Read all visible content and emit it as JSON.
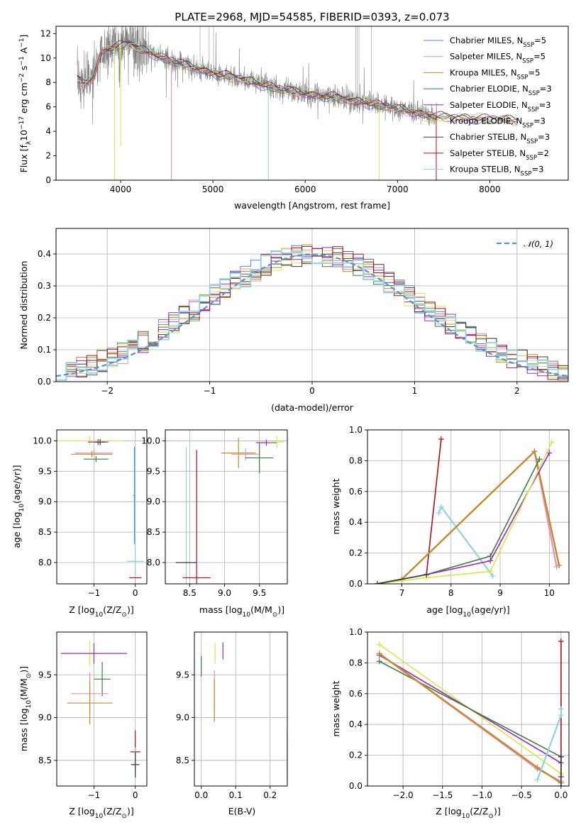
{
  "figure": {
    "title": "PLATE=2968, MJD=54585, FIBERID=0393, z=0.073"
  },
  "model_colors": {
    "Chabrier MILES": "#5b7fd6",
    "Salpeter MILES": "#e68fc2",
    "Kroupa MILES": "#c68a1e",
    "Chabrier ELODIE": "#3f7a3f",
    "Salpeter ELODIE": "#9a28b8",
    "Kroupa ELODIE": "#d4e84a",
    "Chabrier STELIB": "#3a3a3a",
    "Salpeter STELIB": "#a8101a",
    "Kroupa STELIB": "#8fd3d9",
    "data": "#808080",
    "normal": "#5a8fd6"
  },
  "chart_data": [
    {
      "id": "spectrum",
      "type": "line",
      "title": "PLATE=2968, MJD=54585, FIBERID=0393, z=0.073",
      "xlabel": "wavelength [Angstrom, rest frame]",
      "ylabel_parts": [
        "Flux [f",
        "λ",
        "10",
        "−17",
        " erg cm",
        "−2",
        " s",
        "−1",
        " A",
        "−1",
        "]"
      ],
      "xlim": [
        3300,
        8850
      ],
      "ylim": [
        0,
        12.6
      ],
      "xticks": [
        4000,
        5000,
        6000,
        7000,
        8000
      ],
      "yticks": [
        0,
        2,
        4,
        6,
        8,
        10,
        12
      ],
      "grid": false,
      "legend_position": "top-right",
      "legend": [
        {
          "label": "Chabrier MILES, N",
          "sub": "SSP",
          "suffix": "=5",
          "model": "Chabrier MILES"
        },
        {
          "label": "Salpeter MILES, N",
          "sub": "SSP",
          "suffix": "=5",
          "model": "Salpeter MILES"
        },
        {
          "label": "Kroupa MILES, N",
          "sub": "SSP",
          "suffix": "=5",
          "model": "Kroupa MILES"
        },
        {
          "label": "Chabrier ELODIE, N",
          "sub": "SSP",
          "suffix": "=3",
          "model": "Chabrier ELODIE"
        },
        {
          "label": "Salpeter ELODIE, N",
          "sub": "SSP",
          "suffix": "=3",
          "model": "Salpeter ELODIE"
        },
        {
          "label": "Kroupa ELODIE, N",
          "sub": "SSP",
          "suffix": "=3",
          "model": "Kroupa ELODIE"
        },
        {
          "label": "Chabrier STELIB, N",
          "sub": "SSP",
          "suffix": "=3",
          "model": "Chabrier STELIB"
        },
        {
          "label": "Salpeter STELIB, N",
          "sub": "SSP",
          "suffix": "=2",
          "model": "Salpeter STELIB"
        },
        {
          "label": "Kroupa STELIB, N",
          "sub": "SSP",
          "suffix": "=3",
          "model": "Kroupa STELIB"
        }
      ],
      "continuum_knots": {
        "x": [
          3530,
          3600,
          3700,
          3760,
          3800,
          3900,
          4000,
          4100,
          4200,
          4300,
          4400,
          4500,
          4700,
          4900,
          5100,
          5300,
          5500,
          5700,
          5900,
          6100,
          6300,
          6500,
          6700,
          6900,
          7100,
          7300,
          7430
        ],
        "y": [
          8.2,
          7.9,
          8.3,
          9.8,
          10.6,
          10.8,
          11.0,
          11.2,
          10.7,
          10.5,
          10.2,
          9.9,
          9.4,
          9.0,
          8.6,
          8.3,
          7.9,
          7.5,
          7.2,
          7.0,
          6.8,
          6.5,
          6.3,
          6.0,
          5.7,
          5.4,
          5.2
        ]
      },
      "model_only_range": [
        7430,
        8300
      ],
      "model_tail_y": [
        5.2,
        4.9
      ]
    },
    {
      "id": "residuals",
      "type": "histogram",
      "xlabel": "(data-model)/error",
      "ylabel": "Normed distribution",
      "xlim": [
        -2.5,
        2.5
      ],
      "ylim": [
        0,
        0.48
      ],
      "xticks": [
        -2,
        -1,
        0,
        1,
        2
      ],
      "yticks": [
        0.0,
        0.1,
        0.2,
        0.3,
        0.4
      ],
      "grid": true,
      "legend_position": "top-right",
      "legend": [
        {
          "label": "𝒩(0, 1)",
          "model": "normal"
        }
      ],
      "bins": {
        "start": -2.5,
        "width": 0.1,
        "count": 50
      }
    },
    {
      "id": "age-vs-Z",
      "type": "errorbar",
      "xlabel": "Z [log10(Z/Z⊙)]",
      "xlabel_parts": [
        "Z [log",
        "10",
        "(Z/Z",
        "⊙",
        ")]"
      ],
      "ylabel": "age [log10(age/yr)]",
      "ylabel_parts": [
        "age  [log",
        "10",
        "(age/yr)]"
      ],
      "xlim": [
        -1.9,
        0.28
      ],
      "ylim": [
        7.65,
        10.18
      ],
      "xticks": [
        -1,
        0
      ],
      "yticks": [
        8.0,
        8.5,
        9.0,
        9.5,
        10.0
      ],
      "grid": true,
      "points": [
        {
          "model": "Kroupa ELODIE",
          "x": -1.1,
          "xerr": 0.8,
          "y": 10.0,
          "yerr": 0.08
        },
        {
          "model": "Salpeter ELODIE",
          "x": -0.9,
          "xerr": 0.25,
          "y": 9.98,
          "yerr": 0.05
        },
        {
          "model": "Chabrier ELODIE",
          "x": -0.95,
          "xerr": 0.3,
          "y": 9.7,
          "yerr": 0.05
        },
        {
          "model": "Salpeter MILES",
          "x": -1.0,
          "xerr": 0.45,
          "y": 9.8,
          "yerr": 0.05
        },
        {
          "model": "Kroupa MILES",
          "x": -1.05,
          "xerr": 0.5,
          "y": 9.78,
          "yerr": 0.05
        },
        {
          "model": "Chabrier STELIB",
          "x": -0.85,
          "xerr": 0.12,
          "y": 9.98,
          "yerr": 0.05
        },
        {
          "model": "Chabrier MILES",
          "x": -0.02,
          "xerr": 0.03,
          "y": 9.1,
          "yerr": 0.8
        },
        {
          "model": "Kroupa STELIB",
          "x": 0.0,
          "xerr": 0.2,
          "y": 8.02,
          "yerr": 1.9
        },
        {
          "model": "Salpeter STELIB",
          "x": 0.0,
          "xerr": 0.15,
          "y": 7.75,
          "yerr": 0.0
        }
      ]
    },
    {
      "id": "age-vs-mass",
      "type": "errorbar",
      "xlabel_parts": [
        "mass [log",
        "10",
        "(M/M",
        "⊙",
        ")]"
      ],
      "xlim": [
        8.15,
        9.9
      ],
      "ylim": [
        7.65,
        10.18
      ],
      "xticks": [
        8.5,
        9.0,
        9.5
      ],
      "yticks": [
        8.0,
        8.5,
        9.0,
        9.5,
        10.0
      ],
      "grid": true,
      "points": [
        {
          "model": "Kroupa STELIB",
          "x": 8.45,
          "xerr": 0.02,
          "y": 8.0,
          "yerr": 1.9
        },
        {
          "model": "Chabrier STELIB",
          "x": 8.45,
          "xerr": 0.15,
          "y": 8.0,
          "yerr": 0.0
        },
        {
          "model": "Salpeter STELIB",
          "x": 8.6,
          "xerr": 0.2,
          "y": 7.75,
          "yerr": 2.1
        },
        {
          "model": "Kroupa MILES",
          "x": 9.2,
          "xerr": 0.25,
          "y": 9.8,
          "yerr": 0.25
        },
        {
          "model": "Salpeter MILES",
          "x": 9.3,
          "xerr": 0.2,
          "y": 9.78,
          "yerr": 0.1
        },
        {
          "model": "Chabrier ELODIE",
          "x": 9.5,
          "xerr": 0.2,
          "y": 9.72,
          "yerr": 0.25
        },
        {
          "model": "Salpeter ELODIE",
          "x": 9.6,
          "xerr": 0.15,
          "y": 9.97,
          "yerr": 0.05
        },
        {
          "model": "Kroupa ELODIE",
          "x": 9.75,
          "xerr": 0.1,
          "y": 9.98,
          "yerr": 0.1
        }
      ]
    },
    {
      "id": "weight-vs-age",
      "type": "line",
      "xlabel_parts": [
        "age  [log",
        "10",
        "(age/yr)]"
      ],
      "ylabel": "mass weight",
      "xlim": [
        6.3,
        10.4
      ],
      "ylim": [
        0,
        1
      ],
      "xticks": [
        7,
        8,
        9,
        10
      ],
      "yticks": [
        0.0,
        0.2,
        0.4,
        0.6,
        0.8,
        1.0
      ],
      "grid": true,
      "series": [
        {
          "model": "Salpeter STELIB",
          "x": [
            7.5,
            7.8
          ],
          "y": [
            0.06,
            0.94
          ]
        },
        {
          "model": "Kroupa STELIB",
          "x": [
            7.75,
            7.8,
            8.85
          ],
          "y": [
            0.46,
            0.5,
            0.05
          ]
        },
        {
          "model": "Chabrier MILES",
          "x": [
            6.5,
            7.0,
            9.7,
            10.2
          ],
          "y": [
            0.0,
            0.03,
            0.86,
            0.12
          ]
        },
        {
          "model": "Salpeter MILES",
          "x": [
            6.5,
            7.0,
            9.7,
            10.15
          ],
          "y": [
            0.0,
            0.03,
            0.86,
            0.11
          ]
        },
        {
          "model": "Kroupa MILES",
          "x": [
            6.5,
            7.0,
            9.7,
            10.2
          ],
          "y": [
            0.0,
            0.03,
            0.86,
            0.12
          ]
        },
        {
          "model": "Chabrier ELODIE",
          "x": [
            6.5,
            7.5,
            8.8,
            9.8
          ],
          "y": [
            0.0,
            0.06,
            0.18,
            0.81
          ]
        },
        {
          "model": "Salpeter ELODIE",
          "x": [
            6.5,
            7.5,
            8.8,
            10.0
          ],
          "y": [
            0.0,
            0.06,
            0.15,
            0.85
          ]
        },
        {
          "model": "Kroupa ELODIE",
          "x": [
            6.5,
            7.5,
            8.8,
            10.05
          ],
          "y": [
            0.0,
            0.04,
            0.08,
            0.92
          ]
        },
        {
          "model": "Chabrier STELIB",
          "x": [
            6.5,
            7.5
          ],
          "y": [
            0.0,
            0.06
          ]
        }
      ]
    },
    {
      "id": "mass-vs-Z",
      "type": "errorbar",
      "xlabel_parts": [
        "Z [log",
        "10",
        "(Z/Z",
        "⊙",
        ")]"
      ],
      "ylabel_parts": [
        "mass [log",
        "10",
        "(M/M",
        "⊙",
        ")]"
      ],
      "xlim": [
        -1.9,
        0.28
      ],
      "ylim": [
        8.2,
        10.0
      ],
      "xticks": [
        -1,
        0
      ],
      "yticks": [
        8.5,
        9.0,
        9.5
      ],
      "grid": true,
      "points": [
        {
          "model": "Kroupa ELODIE",
          "x": -1.1,
          "xerr": 0.1,
          "y": 9.75,
          "yerr": 0.15
        },
        {
          "model": "Salpeter ELODIE",
          "x": -1.0,
          "xerr": 0.8,
          "y": 9.75,
          "yerr": 0.12
        },
        {
          "model": "Chabrier ELODIE",
          "x": -0.8,
          "xerr": 0.2,
          "y": 9.45,
          "yerr": 0.2
        },
        {
          "model": "Salpeter MILES",
          "x": -1.1,
          "xerr": 0.45,
          "y": 9.28,
          "yerr": 0.25
        },
        {
          "model": "Kroupa MILES",
          "x": -1.1,
          "xerr": 0.55,
          "y": 9.17,
          "yerr": 0.25
        },
        {
          "model": "Salpeter STELIB",
          "x": 0.0,
          "xerr": 0.12,
          "y": 8.6,
          "yerr": 0.25
        },
        {
          "model": "Kroupa STELIB",
          "x": 0.0,
          "xerr": 0.1,
          "y": 8.45,
          "yerr": 0.2
        },
        {
          "model": "Chabrier STELIB",
          "x": 0.0,
          "xerr": 0.1,
          "y": 8.45,
          "yerr": 0.15
        }
      ]
    },
    {
      "id": "mass-vs-ebv",
      "type": "errorbar",
      "xlabel": "E(B-V)",
      "xlim": [
        -0.02,
        0.25
      ],
      "ylim": [
        8.2,
        10.0
      ],
      "xticks": [
        0.0,
        0.1,
        0.2
      ],
      "yticks": [
        8.5,
        9.0,
        9.5
      ],
      "grid": true,
      "points": [
        {
          "model": "Chabrier ELODIE",
          "x": 0.0,
          "xerr": 0.0,
          "y": 9.6,
          "yerr": 0.12
        },
        {
          "model": "Kroupa ELODIE",
          "x": 0.04,
          "xerr": 0.0,
          "y": 9.75,
          "yerr": 0.12
        },
        {
          "model": "Salpeter ELODIE",
          "x": 0.063,
          "xerr": 0.0,
          "y": 9.78,
          "yerr": 0.1
        },
        {
          "model": "Salpeter MILES",
          "x": 0.038,
          "xerr": 0.0,
          "y": 9.3,
          "yerr": 0.25
        },
        {
          "model": "Kroupa MILES",
          "x": 0.038,
          "xerr": 0.0,
          "y": 9.2,
          "yerr": 0.25
        },
        {
          "model": "Salpeter STELIB",
          "x": 0.25,
          "xerr": 0.0,
          "y": 8.7,
          "yerr": 0.15
        },
        {
          "model": "Kroupa STELIB",
          "x": 0.25,
          "xerr": 0.0,
          "y": 8.5,
          "yerr": 0.15
        },
        {
          "model": "Chabrier STELIB",
          "x": 0.25,
          "xerr": 0.0,
          "y": 8.4,
          "yerr": 0.15
        }
      ]
    },
    {
      "id": "weight-vs-Z",
      "type": "line",
      "xlabel_parts": [
        "Z [log",
        "10",
        "(Z/Z",
        "⊙",
        ")]"
      ],
      "ylabel": "mass weight",
      "xlim": [
        -2.45,
        0.1
      ],
      "ylim": [
        0,
        1
      ],
      "xticks": [
        -2.0,
        -1.5,
        -1.0,
        -0.5,
        0.0
      ],
      "yticks": [
        0.0,
        0.2,
        0.4,
        0.6,
        0.8,
        1.0
      ],
      "grid": true,
      "series": [
        {
          "model": "Kroupa ELODIE",
          "x": [
            -2.3,
            0.0
          ],
          "y": [
            0.92,
            0.08
          ]
        },
        {
          "model": "Salpeter ELODIE",
          "x": [
            -2.3,
            0.0
          ],
          "y": [
            0.85,
            0.15
          ]
        },
        {
          "model": "Chabrier ELODIE",
          "x": [
            -2.3,
            0.0
          ],
          "y": [
            0.81,
            0.19
          ]
        },
        {
          "model": "Chabrier MILES",
          "x": [
            -2.3,
            -0.3,
            0.0
          ],
          "y": [
            0.86,
            0.12,
            0.02
          ]
        },
        {
          "model": "Salpeter MILES",
          "x": [
            -2.3,
            -0.3,
            0.0
          ],
          "y": [
            0.86,
            0.11,
            0.03
          ]
        },
        {
          "model": "Kroupa MILES",
          "x": [
            -2.3,
            -0.3,
            0.0
          ],
          "y": [
            0.86,
            0.12,
            0.02
          ]
        },
        {
          "model": "Salpeter STELIB",
          "x": [
            0.0,
            0.0
          ],
          "y": [
            0.06,
            0.94
          ]
        },
        {
          "model": "Kroupa STELIB",
          "x": [
            -0.3,
            0.0,
            0.0
          ],
          "y": [
            0.04,
            0.46,
            0.5
          ]
        },
        {
          "model": "Chabrier STELIB",
          "x": [
            0.0,
            0.0
          ],
          "y": [
            0.0,
            0.19
          ]
        }
      ]
    }
  ]
}
